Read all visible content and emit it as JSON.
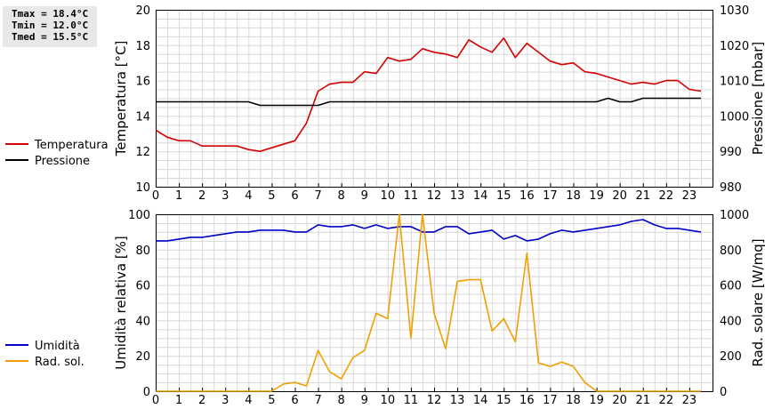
{
  "stats": {
    "tmax": "Tmax = 18.4°C",
    "tmin": "Tmin = 12.0°C",
    "tmed": "Tmed = 15.5°C"
  },
  "colors": {
    "temperature": "#d40000",
    "pressure": "#000000",
    "humidity": "#0000c8",
    "radiation": "#f0a000",
    "grid": "#d8d8d8"
  },
  "chart_data": [
    {
      "type": "line",
      "xlim": [
        0,
        24
      ],
      "x_ticks": [
        "0",
        "1",
        "2",
        "3",
        "4",
        "5",
        "6",
        "7",
        "8",
        "9",
        "10",
        "11",
        "12",
        "13",
        "14",
        "15",
        "16",
        "17",
        "18",
        "19",
        "20",
        "21",
        "22",
        "23"
      ],
      "ylabel": "Temperatura [°C]",
      "ylim": [
        10,
        20
      ],
      "y_ticks": [
        "10",
        "12",
        "14",
        "16",
        "18",
        "20"
      ],
      "y2label": "Pressione [mbar]",
      "y2lim": [
        980,
        1030
      ],
      "y2_ticks": [
        "980",
        "990",
        "1000",
        "1010",
        "1020",
        "1030"
      ],
      "grid": true,
      "legend_position": "left",
      "series": [
        {
          "name": "Temperatura",
          "axis": "left",
          "x": [
            0,
            0.5,
            1,
            1.5,
            2,
            2.5,
            3,
            3.5,
            4,
            4.5,
            5,
            5.5,
            6,
            6.5,
            7,
            7.5,
            8,
            8.5,
            9,
            9.5,
            10,
            10.5,
            11,
            11.5,
            12,
            12.5,
            13,
            13.5,
            14,
            14.5,
            15,
            15.5,
            16,
            16.5,
            17,
            17.5,
            18,
            18.5,
            19,
            19.5,
            20,
            20.5,
            21,
            21.5,
            22,
            22.5,
            23,
            23.5
          ],
          "values": [
            13.2,
            12.8,
            12.6,
            12.6,
            12.3,
            12.3,
            12.3,
            12.3,
            12.1,
            12.0,
            12.2,
            12.4,
            12.6,
            13.6,
            15.4,
            15.8,
            15.9,
            15.9,
            16.5,
            16.4,
            17.3,
            17.1,
            17.2,
            17.8,
            17.6,
            17.5,
            17.3,
            18.3,
            17.9,
            17.6,
            18.4,
            17.3,
            18.1,
            17.6,
            17.1,
            16.9,
            17.0,
            16.5,
            16.4,
            16.2,
            16.0,
            15.8,
            15.9,
            15.8,
            16.0,
            16.0,
            15.5,
            15.4
          ]
        },
        {
          "name": "Pressione",
          "axis": "right",
          "x": [
            0,
            0.5,
            1,
            1.5,
            2,
            2.5,
            3,
            3.5,
            4,
            4.5,
            5,
            5.5,
            6,
            6.5,
            7,
            7.5,
            8,
            8.5,
            9,
            9.5,
            10,
            10.5,
            11,
            11.5,
            12,
            12.5,
            13,
            13.5,
            14,
            14.5,
            15,
            15.5,
            16,
            16.5,
            17,
            17.5,
            18,
            18.5,
            19,
            19.5,
            20,
            20.5,
            21,
            21.5,
            22,
            22.5,
            23,
            23.5
          ],
          "values": [
            1004,
            1004,
            1004,
            1004,
            1004,
            1004,
            1004,
            1004,
            1004,
            1003,
            1003,
            1003,
            1003,
            1003,
            1003,
            1004,
            1004,
            1004,
            1004,
            1004,
            1004,
            1004,
            1004,
            1004,
            1004,
            1004,
            1004,
            1004,
            1004,
            1004,
            1004,
            1004,
            1004,
            1004,
            1004,
            1004,
            1004,
            1004,
            1004,
            1005,
            1004,
            1004,
            1005,
            1005,
            1005,
            1005,
            1005,
            1005
          ]
        }
      ]
    },
    {
      "type": "line",
      "xlim": [
        0,
        24
      ],
      "x_ticks": [
        "0",
        "1",
        "2",
        "3",
        "4",
        "5",
        "6",
        "7",
        "8",
        "9",
        "10",
        "11",
        "12",
        "13",
        "14",
        "15",
        "16",
        "17",
        "18",
        "19",
        "20",
        "21",
        "22",
        "23"
      ],
      "ylabel": "Umidità relativa [%]",
      "ylim": [
        0,
        100
      ],
      "y_ticks": [
        "0",
        "20",
        "40",
        "60",
        "80",
        "100"
      ],
      "y2label": "Rad. solare [W/mq]",
      "y2lim": [
        0,
        1000
      ],
      "y2_ticks": [
        "0",
        "200",
        "400",
        "600",
        "800",
        "1000"
      ],
      "grid": true,
      "legend_position": "left",
      "series": [
        {
          "name": "Umidità",
          "axis": "left",
          "x": [
            0,
            0.5,
            1,
            1.5,
            2,
            2.5,
            3,
            3.5,
            4,
            4.5,
            5,
            5.5,
            6,
            6.5,
            7,
            7.5,
            8,
            8.5,
            9,
            9.5,
            10,
            10.5,
            11,
            11.5,
            12,
            12.5,
            13,
            13.5,
            14,
            14.5,
            15,
            15.5,
            16,
            16.5,
            17,
            17.5,
            18,
            18.5,
            19,
            19.5,
            20,
            20.5,
            21,
            21.5,
            22,
            22.5,
            23,
            23.5
          ],
          "values": [
            85,
            85,
            86,
            87,
            87,
            88,
            89,
            90,
            90,
            91,
            91,
            91,
            90,
            90,
            94,
            93,
            93,
            94,
            92,
            94,
            92,
            93,
            93,
            90,
            90,
            93,
            93,
            89,
            90,
            91,
            86,
            88,
            85,
            86,
            89,
            91,
            90,
            91,
            92,
            93,
            94,
            96,
            97,
            94,
            92,
            92,
            91,
            90
          ]
        },
        {
          "name": "Rad. sol.",
          "axis": "right",
          "x": [
            0,
            0.5,
            1,
            1.5,
            2,
            2.5,
            3,
            3.5,
            4,
            4.5,
            5,
            5.5,
            6,
            6.5,
            7,
            7.5,
            8,
            8.5,
            9,
            9.5,
            10,
            10.5,
            11,
            11.5,
            12,
            12.5,
            13,
            13.5,
            14,
            14.5,
            15,
            15.5,
            16,
            16.5,
            17,
            17.5,
            18,
            18.5,
            19,
            19.5,
            20,
            20.5,
            21,
            21.5,
            22,
            22.5,
            23,
            23.5
          ],
          "values": [
            0,
            0,
            0,
            0,
            0,
            0,
            0,
            0,
            0,
            0,
            0,
            40,
            50,
            30,
            230,
            110,
            70,
            190,
            230,
            440,
            410,
            1000,
            300,
            1000,
            440,
            240,
            620,
            630,
            630,
            340,
            410,
            280,
            780,
            160,
            140,
            165,
            140,
            50,
            0,
            0,
            0,
            0,
            0,
            0,
            0,
            0,
            0,
            0
          ]
        }
      ]
    }
  ]
}
